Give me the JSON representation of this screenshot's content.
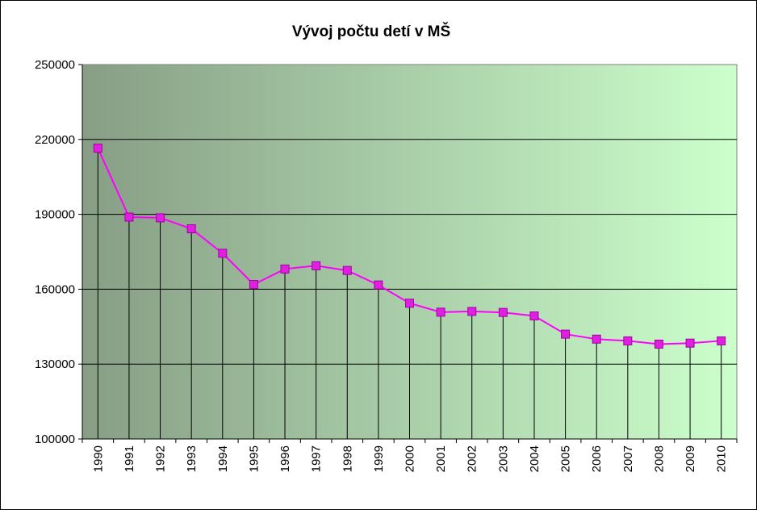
{
  "chart_data": {
    "type": "line",
    "title": "Vývoj počtu detí v MŠ",
    "xlabel": "",
    "ylabel": "",
    "categories": [
      "1990",
      "1991",
      "1992",
      "1993",
      "1994",
      "1995",
      "1996",
      "1997",
      "1998",
      "1999",
      "2000",
      "2001",
      "2002",
      "2003",
      "2004",
      "2005",
      "2006",
      "2007",
      "2008",
      "2009",
      "2010"
    ],
    "series": [
      {
        "values": [
          216500,
          188900,
          188600,
          184200,
          174400,
          161900,
          168100,
          169400,
          167500,
          161700,
          154400,
          150800,
          151100,
          150700,
          149300,
          142000,
          140000,
          139300,
          138000,
          138400,
          139300
        ]
      }
    ],
    "ylim": [
      100000,
      250000
    ],
    "yticks": [
      100000,
      130000,
      160000,
      190000,
      220000,
      250000
    ],
    "ytick_labels": [
      "100000",
      "130000",
      "160000",
      "190000",
      "220000",
      "250000"
    ],
    "grid": true,
    "drop_lines": true,
    "legend": "none",
    "colors": {
      "line": "#ff00ff",
      "marker": "#e020e0",
      "marker_edge": "#a000a0",
      "bg_left": "#879e85",
      "bg_right": "#ccffcc"
    }
  }
}
